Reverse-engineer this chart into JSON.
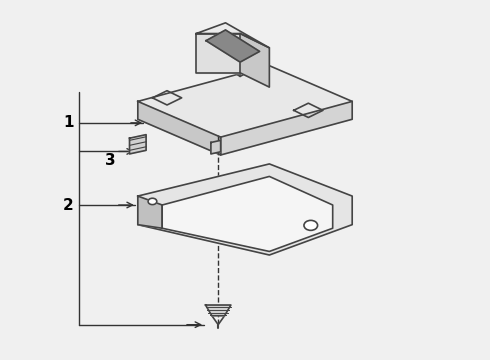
{
  "bg_color": "#f0f0f0",
  "line_color": "#333333",
  "label_color": "#000000",
  "linewidth": 1.2,
  "part_line_color": "#444444"
}
